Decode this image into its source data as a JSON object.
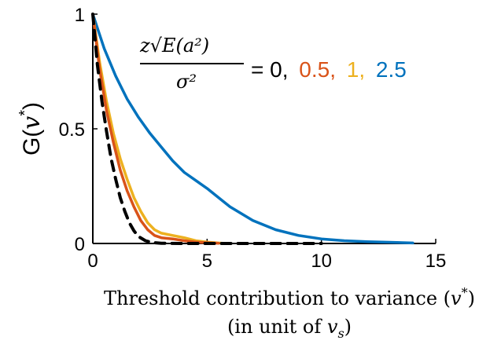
{
  "chart_data": {
    "type": "line",
    "xlabel_line1": "Threshold contribution to variance (",
    "xlabel_sym": "v",
    "xlabel_sup": "*",
    "xlabel_close": ")",
    "xlabel_line2": "(in unit of ",
    "xlabel_line2_sym": "v",
    "xlabel_line2_sub": "s",
    "xlabel_line2_close": ")",
    "ylabel": "G(",
    "ylabel_sym": "v",
    "ylabel_sup": "*",
    "ylabel_close": ")",
    "xlim": [
      0,
      15
    ],
    "ylim": [
      0,
      1
    ],
    "xticks": [
      0,
      5,
      10,
      15
    ],
    "yticks": [
      0,
      0.5,
      1
    ],
    "xtick_labels": [
      "0",
      "5",
      "10",
      "15"
    ],
    "ytick_labels": [
      "0",
      "0.5",
      "1"
    ],
    "annotation": {
      "numerator": "z√E(a²)",
      "denominator": "σ²",
      "equals": "= 0,",
      "values": [
        {
          "text": "0.5,",
          "color": "#D95319"
        },
        {
          "text": "1,",
          "color": "#EDB120"
        },
        {
          "text": "2.5",
          "color": "#0072BD"
        }
      ]
    },
    "series": [
      {
        "value": 0,
        "color": "#000000",
        "dash": true,
        "x": [
          0,
          0.2,
          0.4,
          0.6,
          0.8,
          1.0,
          1.2,
          1.4,
          1.6,
          1.8,
          2.0,
          2.3,
          2.6,
          3.0,
          4.0,
          6.0,
          10.0
        ],
        "y": [
          1.0,
          0.78,
          0.62,
          0.49,
          0.37,
          0.28,
          0.2,
          0.14,
          0.09,
          0.055,
          0.03,
          0.012,
          0.004,
          0.001,
          0.0,
          0.0,
          0.0
        ]
      },
      {
        "value": 0.5,
        "color": "#D95319",
        "dash": false,
        "x": [
          0,
          0.3,
          0.6,
          0.9,
          1.2,
          1.5,
          1.8,
          2.1,
          2.4,
          2.7,
          3.0,
          3.5,
          4.0,
          4.5,
          5.0,
          5.5
        ],
        "y": [
          1.0,
          0.76,
          0.58,
          0.44,
          0.32,
          0.23,
          0.16,
          0.1,
          0.06,
          0.035,
          0.025,
          0.02,
          0.012,
          0.006,
          0.003,
          0.001
        ]
      },
      {
        "value": 1,
        "color": "#EDB120",
        "dash": false,
        "x": [
          0,
          0.3,
          0.6,
          0.9,
          1.2,
          1.5,
          1.8,
          2.1,
          2.4,
          2.7,
          3.0,
          3.5,
          4.0,
          4.5,
          5.0,
          5.5,
          5.8
        ],
        "y": [
          1.0,
          0.79,
          0.62,
          0.48,
          0.37,
          0.28,
          0.2,
          0.14,
          0.09,
          0.06,
          0.045,
          0.035,
          0.025,
          0.012,
          0.006,
          0.002,
          0.0
        ]
      },
      {
        "value": 2.5,
        "color": "#0072BD",
        "dash": false,
        "x": [
          0,
          0.5,
          1.0,
          1.5,
          2.0,
          2.5,
          3.0,
          3.5,
          4.0,
          5.0,
          6.0,
          7.0,
          8.0,
          9.0,
          10.0,
          11.0,
          12.0,
          13.0,
          14.0
        ],
        "y": [
          1.0,
          0.85,
          0.73,
          0.63,
          0.55,
          0.48,
          0.42,
          0.36,
          0.31,
          0.24,
          0.16,
          0.1,
          0.06,
          0.035,
          0.02,
          0.012,
          0.008,
          0.005,
          0.002
        ]
      }
    ]
  }
}
